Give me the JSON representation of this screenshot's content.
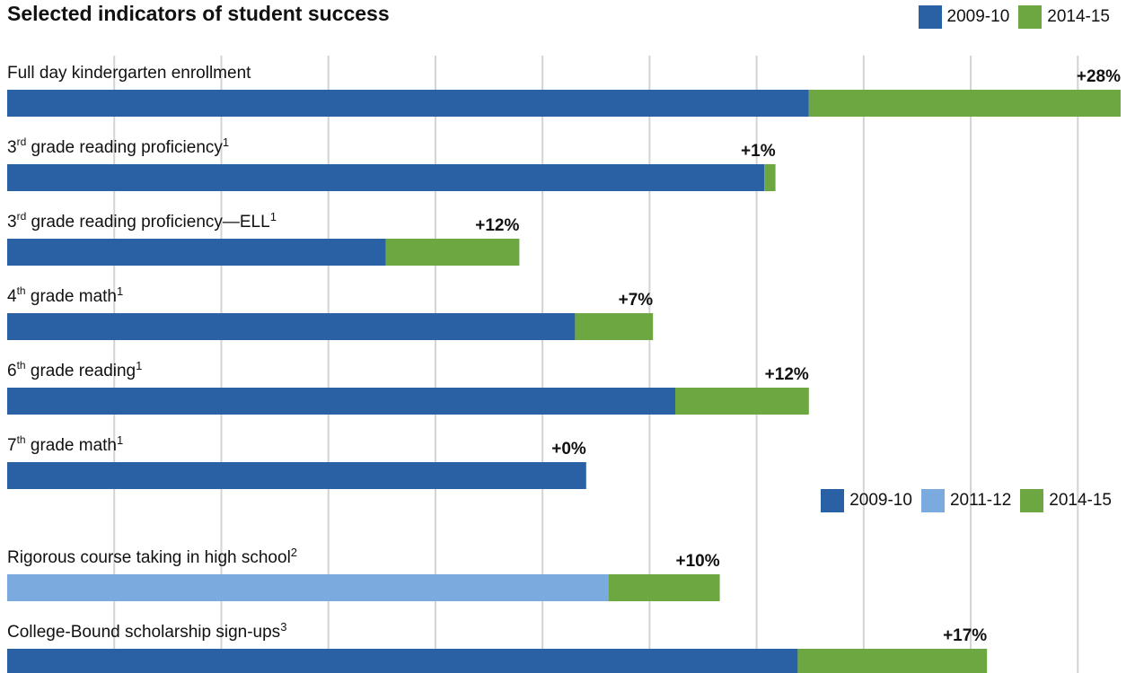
{
  "colors": {
    "c2009": "#2a61a5",
    "c2011": "#7aaade",
    "c2014": "#6ca742",
    "grid": "#d3d3d3"
  },
  "legend_top": [
    {
      "label": "2009-10",
      "color": "#2a61a5"
    },
    {
      "label": "2014-15",
      "color": "#6ca742"
    }
  ],
  "legend_mid": [
    {
      "label": "2009-10",
      "color": "#2a61a5"
    },
    {
      "label": "2011-12",
      "color": "#7aaade"
    },
    {
      "label": "2014-15",
      "color": "#6ca742"
    }
  ],
  "chart_data": {
    "type": "bar",
    "orientation": "horizontal",
    "stacked": true,
    "title": "Selected indicators of student success",
    "xlabel": "",
    "ylabel": "",
    "xlim": [
      0,
      100
    ],
    "grid": true,
    "legend_placement": "top-right",
    "categories": [
      {
        "pre": "",
        "sup": "",
        "post": "Full day kindergarten enrollment",
        "note": ""
      },
      {
        "pre": "3",
        "sup": "rd",
        "post": " grade reading proficiency",
        "note": "1"
      },
      {
        "pre": "3",
        "sup": "rd",
        "post": " grade reading proficiency—ELL",
        "note": "1"
      },
      {
        "pre": "4",
        "sup": "th",
        "post": " grade math",
        "note": "1"
      },
      {
        "pre": "6",
        "sup": "th",
        "post": " grade reading",
        "note": "1"
      },
      {
        "pre": "7",
        "sup": "th",
        "post": " grade math",
        "note": "1"
      },
      {
        "pre": "",
        "sup": "",
        "post": "Rigorous course taking in high school",
        "note": "2"
      },
      {
        "pre": "",
        "sup": "",
        "post": "College-Bound scholarship sign-ups",
        "note": "3"
      }
    ],
    "bars": [
      {
        "base": 72,
        "base_color": "#2a61a5",
        "increase": 28,
        "change_label": "+28%"
      },
      {
        "base": 68,
        "base_color": "#2a61a5",
        "increase": 1,
        "change_label": "+1%"
      },
      {
        "base": 34,
        "base_color": "#2a61a5",
        "increase": 12,
        "change_label": "+12%"
      },
      {
        "base": 51,
        "base_color": "#2a61a5",
        "increase": 7,
        "change_label": "+7%"
      },
      {
        "base": 60,
        "base_color": "#2a61a5",
        "increase": 12,
        "change_label": "+12%"
      },
      {
        "base": 52,
        "base_color": "#2a61a5",
        "increase": 0,
        "change_label": "+0%"
      },
      {
        "base": 54,
        "base_color": "#7aaade",
        "increase": 10,
        "change_label": "+10%"
      },
      {
        "base": 71,
        "base_color": "#2a61a5",
        "increase": 17,
        "change_label": "+17%"
      }
    ]
  }
}
